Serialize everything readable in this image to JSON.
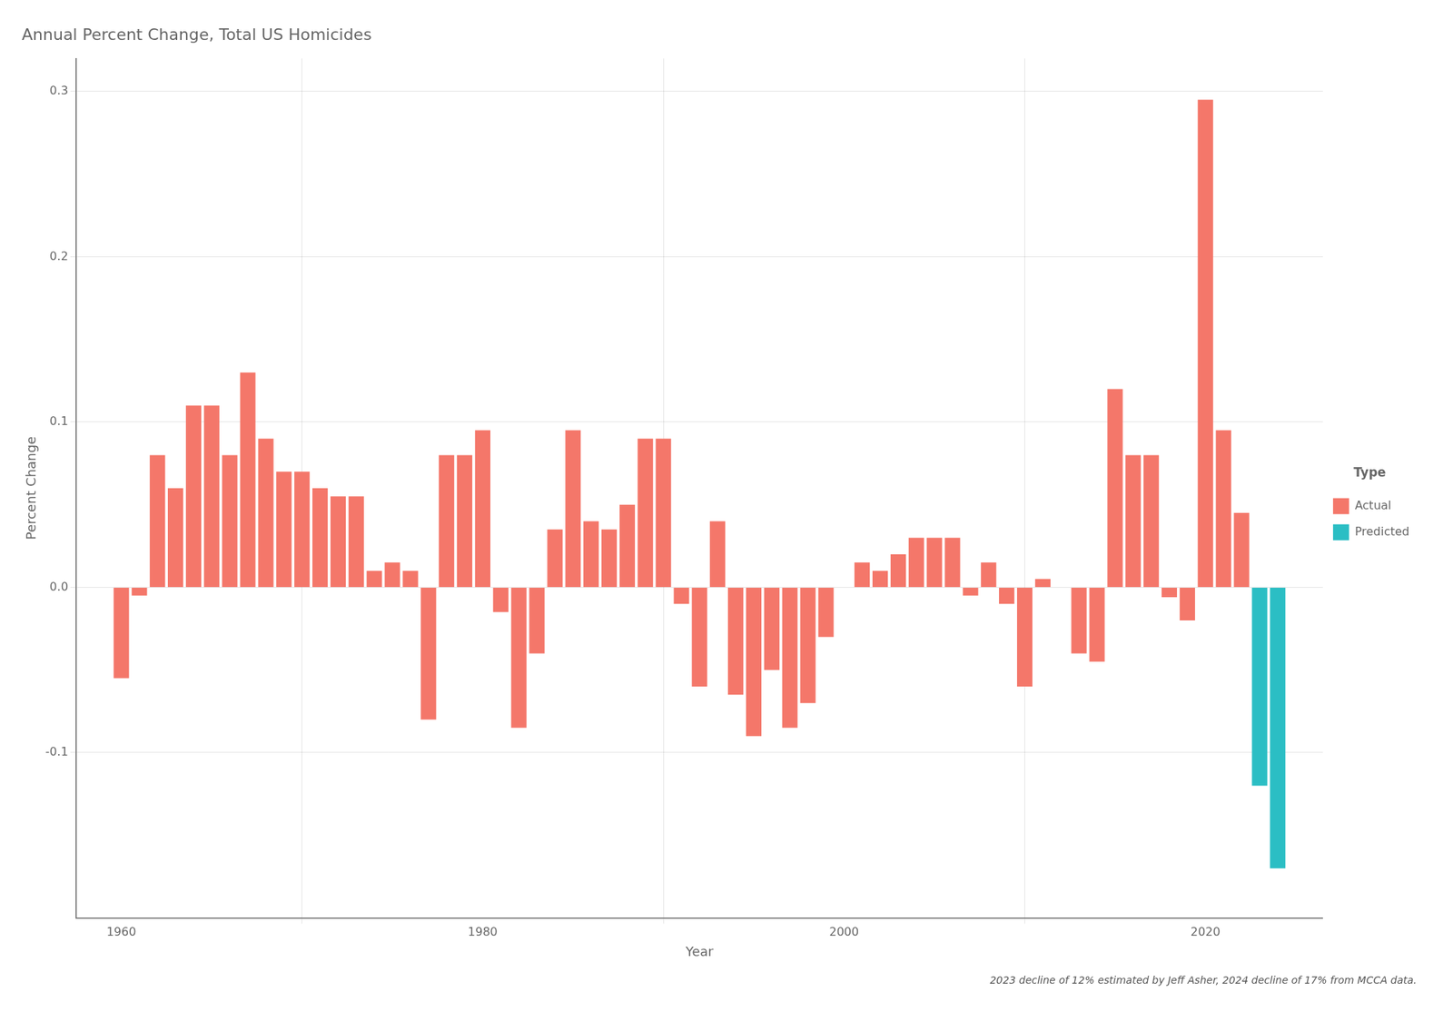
{
  "chart_data": {
    "type": "bar",
    "title": "Annual Percent Change, Total US Homicides",
    "xlabel": "Year",
    "ylabel": "Percent Change",
    "caption": "2023 decline of 12% estimated by Jeff Asher, 2024 decline of 17% from MCCA data.",
    "legend_title": "Type",
    "legend": "right",
    "grid": true,
    "xlim": [
      1957.5,
      2026.5
    ],
    "xticks": [
      1960,
      1980,
      2000,
      2020
    ],
    "ylim": [
      -0.2,
      0.32
    ],
    "yticks": [
      -0.1,
      {
        "value": 0.0,
        "label": "0.0"
      },
      0.1,
      0.2,
      0.3
    ],
    "series": [
      {
        "name": "Actual",
        "color": "#F4776A",
        "x": [
          1960,
          1961,
          1962,
          1963,
          1964,
          1965,
          1966,
          1967,
          1968,
          1969,
          1970,
          1971,
          1972,
          1973,
          1974,
          1975,
          1976,
          1977,
          1978,
          1979,
          1980,
          1981,
          1982,
          1983,
          1984,
          1985,
          1986,
          1987,
          1988,
          1989,
          1990,
          1991,
          1992,
          1993,
          1994,
          1995,
          1996,
          1997,
          1998,
          1999,
          2000,
          2001,
          2002,
          2003,
          2004,
          2005,
          2006,
          2007,
          2008,
          2009,
          2010,
          2011,
          2012,
          2013,
          2014,
          2015,
          2016,
          2017,
          2018,
          2019,
          2020,
          2021,
          2022
        ],
        "values": [
          -0.055,
          -0.005,
          0.08,
          0.06,
          0.11,
          0.11,
          0.08,
          0.13,
          0.09,
          0.07,
          0.07,
          0.06,
          0.055,
          0.055,
          0.01,
          0.015,
          0.01,
          -0.08,
          0.08,
          0.08,
          0.095,
          -0.015,
          -0.085,
          -0.04,
          0.035,
          0.095,
          0.04,
          0.035,
          0.05,
          0.09,
          0.09,
          -0.01,
          -0.06,
          0.04,
          -0.065,
          -0.09,
          -0.05,
          -0.085,
          -0.07,
          -0.03,
          0.0,
          0.015,
          0.01,
          0.02,
          0.03,
          0.03,
          0.03,
          -0.005,
          0.015,
          -0.01,
          -0.06,
          0.005,
          0.0,
          -0.04,
          -0.045,
          0.12,
          0.08,
          0.08,
          -0.006,
          -0.02,
          0.295,
          0.095,
          0.045
        ]
      },
      {
        "name": "Predicted",
        "color": "#2BBEC4",
        "x": [
          2023,
          2024
        ],
        "values": [
          -0.12,
          -0.17
        ]
      }
    ]
  }
}
